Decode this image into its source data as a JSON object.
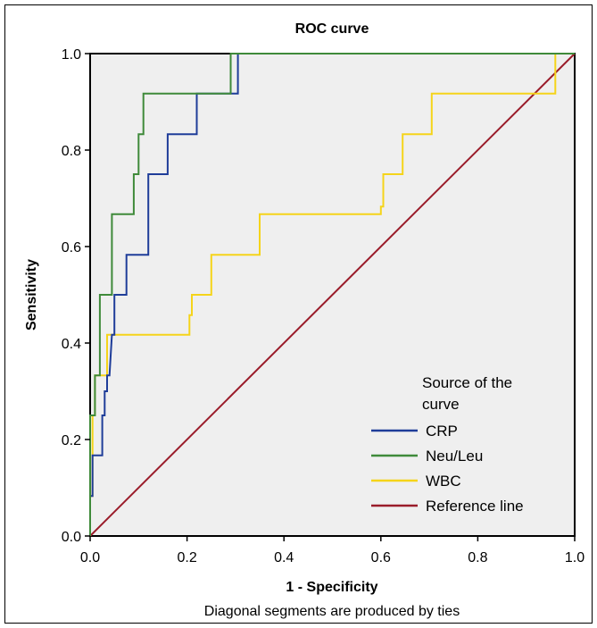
{
  "chart_data": {
    "type": "line",
    "title": "ROC curve",
    "xlabel": "1 - Specificity",
    "ylabel": "Sensitivity",
    "xlim": [
      0,
      1
    ],
    "ylim": [
      0,
      1
    ],
    "x_ticks": [
      "0.0",
      "0.2",
      "0.4",
      "0.6",
      "0.8",
      "1.0"
    ],
    "y_ticks": [
      "0.0",
      "0.2",
      "0.4",
      "0.6",
      "0.8",
      "1.0"
    ],
    "grid": false,
    "legend": {
      "title": "Source of the curve",
      "position": "bottom-right"
    },
    "footnote": "Diagonal segments are produced by ties",
    "series": [
      {
        "name": "CRP",
        "color": "#1f3d99",
        "points": [
          [
            0,
            0
          ],
          [
            0,
            0.083
          ],
          [
            0.005,
            0.083
          ],
          [
            0.005,
            0.167
          ],
          [
            0.025,
            0.167
          ],
          [
            0.025,
            0.25
          ],
          [
            0.03,
            0.25
          ],
          [
            0.03,
            0.3
          ],
          [
            0.035,
            0.3
          ],
          [
            0.035,
            0.333
          ],
          [
            0.04,
            0.333
          ],
          [
            0.045,
            0.417
          ],
          [
            0.05,
            0.417
          ],
          [
            0.05,
            0.5
          ],
          [
            0.075,
            0.5
          ],
          [
            0.075,
            0.583
          ],
          [
            0.12,
            0.583
          ],
          [
            0.12,
            0.75
          ],
          [
            0.16,
            0.75
          ],
          [
            0.16,
            0.833
          ],
          [
            0.22,
            0.833
          ],
          [
            0.22,
            0.917
          ],
          [
            0.305,
            0.917
          ],
          [
            0.305,
            1.0
          ],
          [
            1.0,
            1.0
          ]
        ]
      },
      {
        "name": "Neu/Leu",
        "color": "#3f8a3a",
        "points": [
          [
            0,
            0
          ],
          [
            0,
            0.25
          ],
          [
            0.01,
            0.25
          ],
          [
            0.01,
            0.333
          ],
          [
            0.02,
            0.333
          ],
          [
            0.02,
            0.5
          ],
          [
            0.045,
            0.5
          ],
          [
            0.045,
            0.667
          ],
          [
            0.09,
            0.667
          ],
          [
            0.09,
            0.75
          ],
          [
            0.1,
            0.75
          ],
          [
            0.1,
            0.833
          ],
          [
            0.11,
            0.833
          ],
          [
            0.11,
            0.917
          ],
          [
            0.29,
            0.917
          ],
          [
            0.29,
            1.0
          ],
          [
            1.0,
            1.0
          ]
        ]
      },
      {
        "name": "WBC",
        "color": "#f5d41a",
        "points": [
          [
            0,
            0
          ],
          [
            0,
            0.083
          ],
          [
            0.005,
            0.083
          ],
          [
            0.005,
            0.25
          ],
          [
            0.01,
            0.25
          ],
          [
            0.01,
            0.333
          ],
          [
            0.025,
            0.333
          ],
          [
            0.035,
            0.333
          ],
          [
            0.035,
            0.417
          ],
          [
            0.205,
            0.417
          ],
          [
            0.205,
            0.458
          ],
          [
            0.21,
            0.458
          ],
          [
            0.21,
            0.5
          ],
          [
            0.25,
            0.5
          ],
          [
            0.25,
            0.583
          ],
          [
            0.35,
            0.583
          ],
          [
            0.35,
            0.667
          ],
          [
            0.6,
            0.667
          ],
          [
            0.6,
            0.683
          ],
          [
            0.605,
            0.683
          ],
          [
            0.605,
            0.75
          ],
          [
            0.645,
            0.75
          ],
          [
            0.645,
            0.833
          ],
          [
            0.705,
            0.833
          ],
          [
            0.705,
            0.917
          ],
          [
            0.96,
            0.917
          ],
          [
            0.96,
            1.0
          ],
          [
            1.0,
            1.0
          ]
        ]
      },
      {
        "name": "Reference line",
        "color": "#9a1c2a",
        "points": [
          [
            0,
            0
          ],
          [
            1,
            1
          ]
        ]
      }
    ]
  }
}
